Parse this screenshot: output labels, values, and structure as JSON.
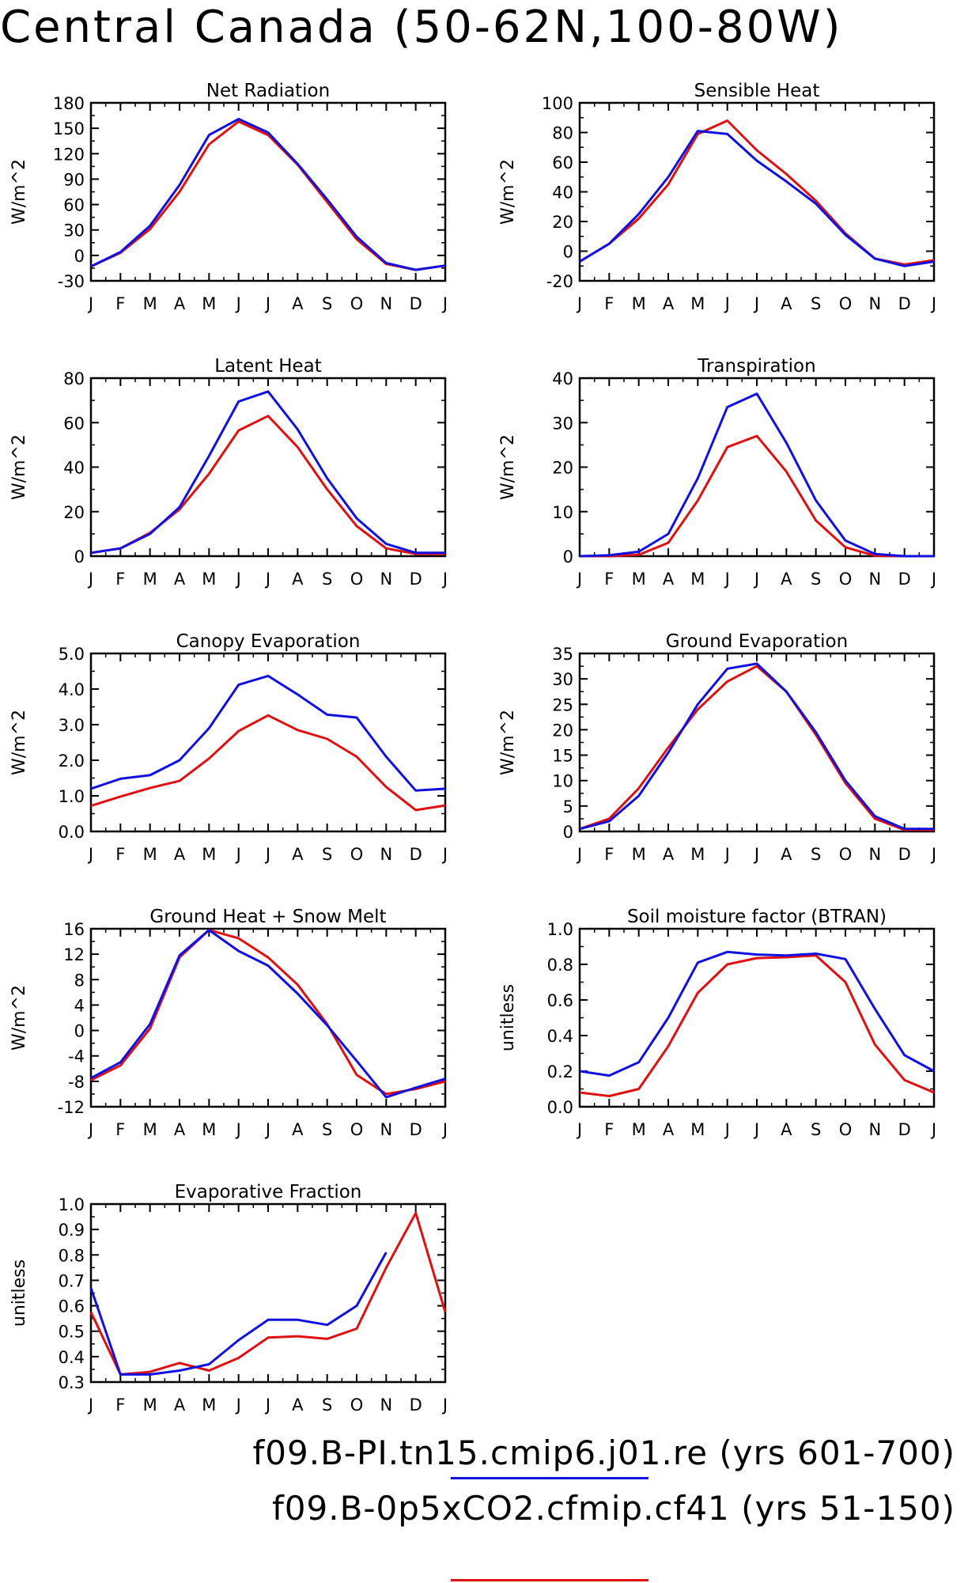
{
  "title": "Central Canada (50-62N,100-80W)",
  "legend": [
    {
      "label": "f09.B-PI.tn15.cmip6.j01.re (yrs 601-700)",
      "color": "#1010e0"
    },
    {
      "label": "f09.B-0p5xCO2.cfmip.cf41 (yrs 51-150)",
      "color": "#e01010"
    }
  ],
  "chart_data": [
    {
      "type": "line",
      "title": "Net Radiation",
      "ylabel": "W/m^2",
      "categories": [
        "J",
        "F",
        "M",
        "A",
        "M",
        "J",
        "J",
        "A",
        "S",
        "O",
        "N",
        "D",
        "J"
      ],
      "ylim": [
        -30,
        180
      ],
      "yticks": [
        -30,
        0,
        30,
        60,
        90,
        120,
        150,
        180
      ],
      "series": [
        {
          "color": "#1010e0",
          "values": [
            -13,
            4,
            35,
            83,
            142,
            161,
            145,
            108,
            66,
            22,
            -9,
            -17,
            -12
          ]
        },
        {
          "color": "#e01010",
          "values": [
            -13,
            3,
            31,
            75,
            131,
            158,
            142,
            107,
            63,
            19,
            -10,
            -17,
            -12
          ]
        }
      ]
    },
    {
      "type": "line",
      "title": "Sensible Heat",
      "ylabel": "W/m^2",
      "categories": [
        "J",
        "F",
        "M",
        "A",
        "M",
        "J",
        "J",
        "A",
        "S",
        "O",
        "N",
        "D",
        "J"
      ],
      "ylim": [
        -20,
        100
      ],
      "yticks": [
        -20,
        0,
        20,
        40,
        60,
        80,
        100
      ],
      "series": [
        {
          "color": "#1010e0",
          "values": [
            -7,
            5,
            25,
            50,
            81,
            79,
            61,
            47,
            32,
            11,
            -5,
            -10,
            -7
          ]
        },
        {
          "color": "#e01010",
          "values": [
            -7,
            5,
            22,
            45,
            79,
            88,
            68,
            52,
            34,
            12,
            -5,
            -9,
            -6
          ]
        }
      ]
    },
    {
      "type": "line",
      "title": "Latent Heat",
      "ylabel": "W/m^2",
      "categories": [
        "J",
        "F",
        "M",
        "A",
        "M",
        "J",
        "J",
        "A",
        "S",
        "O",
        "N",
        "D",
        "J"
      ],
      "ylim": [
        0,
        80
      ],
      "yticks": [
        0,
        20,
        40,
        60,
        80
      ],
      "series": [
        {
          "color": "#1010e0",
          "values": [
            1.5,
            3.5,
            10,
            22,
            45,
            69.5,
            74,
            57,
            35,
            17,
            5.5,
            1.5,
            1.5
          ]
        },
        {
          "color": "#e01010",
          "values": [
            1.5,
            3.5,
            10.5,
            21,
            37,
            56.5,
            63,
            49,
            30,
            13.5,
            3.5,
            1,
            1
          ]
        }
      ]
    },
    {
      "type": "line",
      "title": "Transpiration",
      "ylabel": "W/m^2",
      "categories": [
        "J",
        "F",
        "M",
        "A",
        "M",
        "J",
        "J",
        "A",
        "S",
        "O",
        "N",
        "D",
        "J"
      ],
      "ylim": [
        0,
        40
      ],
      "yticks": [
        0,
        10,
        20,
        30,
        40
      ],
      "series": [
        {
          "color": "#1010e0",
          "values": [
            0,
            0.2,
            1,
            5,
            17.5,
            33.5,
            36.5,
            25.5,
            12.5,
            3.5,
            0.5,
            0,
            0
          ]
        },
        {
          "color": "#e01010",
          "values": [
            0,
            0,
            0.3,
            3,
            12.5,
            24.5,
            27,
            19,
            8,
            2,
            0.1,
            0,
            0
          ]
        }
      ]
    },
    {
      "type": "line",
      "title": "Canopy Evaporation",
      "ylabel": "W/m^2",
      "categories": [
        "J",
        "F",
        "M",
        "A",
        "M",
        "J",
        "J",
        "A",
        "S",
        "O",
        "N",
        "D",
        "J"
      ],
      "ylim": [
        0,
        5
      ],
      "yticks": [
        "0.0",
        "1.0",
        "2.0",
        "3.0",
        "4.0",
        "5.0"
      ],
      "series": [
        {
          "color": "#1010e0",
          "values": [
            1.2,
            1.48,
            1.58,
            2.0,
            2.9,
            4.12,
            4.37,
            3.85,
            3.28,
            3.2,
            2.1,
            1.15,
            1.2
          ]
        },
        {
          "color": "#e01010",
          "values": [
            0.72,
            0.98,
            1.22,
            1.42,
            2.05,
            2.82,
            3.26,
            2.85,
            2.6,
            2.1,
            1.25,
            0.6,
            0.73
          ]
        }
      ]
    },
    {
      "type": "line",
      "title": "Ground Evaporation",
      "ylabel": "W/m^2",
      "categories": [
        "J",
        "F",
        "M",
        "A",
        "M",
        "J",
        "J",
        "A",
        "S",
        "O",
        "N",
        "D",
        "J"
      ],
      "ylim": [
        0,
        35
      ],
      "yticks": [
        0,
        5,
        10,
        15,
        20,
        25,
        30,
        35
      ],
      "series": [
        {
          "color": "#1010e0",
          "values": [
            0.5,
            2,
            7,
            15.5,
            25,
            32,
            33,
            27.5,
            19.5,
            10,
            3,
            0.5,
            0.5
          ]
        },
        {
          "color": "#e01010",
          "values": [
            0.5,
            2.5,
            8.5,
            16.5,
            24,
            29.5,
            32.5,
            27.5,
            19,
            9.5,
            2.5,
            0.3,
            0.3
          ]
        }
      ]
    },
    {
      "type": "line",
      "title": "Ground Heat + Snow Melt",
      "ylabel": "W/m^2",
      "categories": [
        "J",
        "F",
        "M",
        "A",
        "M",
        "J",
        "J",
        "A",
        "S",
        "O",
        "N",
        "D",
        "J"
      ],
      "ylim": [
        -12,
        16
      ],
      "yticks": [
        -12,
        -8,
        -4,
        0,
        4,
        8,
        12,
        16
      ],
      "series": [
        {
          "color": "#1010e0",
          "values": [
            -7.5,
            -5,
            1,
            11.8,
            15.8,
            12.5,
            10.2,
            5.8,
            0.8,
            -4.8,
            -10.5,
            -9,
            -7.6
          ]
        },
        {
          "color": "#e01010",
          "values": [
            -7.8,
            -5.5,
            0.3,
            11.5,
            15.8,
            14.5,
            11.5,
            7.2,
            1,
            -7,
            -10,
            -9.2,
            -8
          ]
        }
      ]
    },
    {
      "type": "line",
      "title": "Soil moisture factor (BTRAN)",
      "ylabel": "unitless",
      "categories": [
        "J",
        "F",
        "M",
        "A",
        "M",
        "J",
        "J",
        "A",
        "S",
        "O",
        "N",
        "D",
        "J"
      ],
      "ylim": [
        0,
        1
      ],
      "yticks": [
        "0.0",
        "0.2",
        "0.4",
        "0.6",
        "0.8",
        "1.0"
      ],
      "series": [
        {
          "color": "#1010e0",
          "values": [
            0.2,
            0.175,
            0.25,
            0.5,
            0.81,
            0.87,
            0.855,
            0.85,
            0.86,
            0.83,
            0.55,
            0.29,
            0.2
          ]
        },
        {
          "color": "#e01010",
          "values": [
            0.08,
            0.06,
            0.1,
            0.34,
            0.64,
            0.8,
            0.835,
            0.84,
            0.85,
            0.7,
            0.35,
            0.15,
            0.08
          ]
        }
      ]
    },
    {
      "type": "line",
      "title": "Evaporative Fraction",
      "ylabel": "unitless",
      "categories": [
        "J",
        "F",
        "M",
        "A",
        "M",
        "J",
        "J",
        "A",
        "S",
        "O",
        "N",
        "D",
        "J"
      ],
      "ylim": [
        0.3,
        1.0
      ],
      "yticks": [
        "0.3",
        "0.4",
        "0.5",
        "0.6",
        "0.7",
        "0.8",
        "0.9",
        "1.0"
      ],
      "series": [
        {
          "color": "#1010e0",
          "values": [
            0.67,
            0.33,
            0.33,
            0.345,
            0.37,
            0.465,
            0.545,
            0.545,
            0.525,
            0.6,
            0.81,
            null,
            null
          ]
        },
        {
          "color": "#e01010",
          "values": [
            0.575,
            0.33,
            0.34,
            0.375,
            0.345,
            0.395,
            0.475,
            0.48,
            0.47,
            0.51,
            0.75,
            0.965,
            0.575
          ]
        }
      ]
    }
  ]
}
